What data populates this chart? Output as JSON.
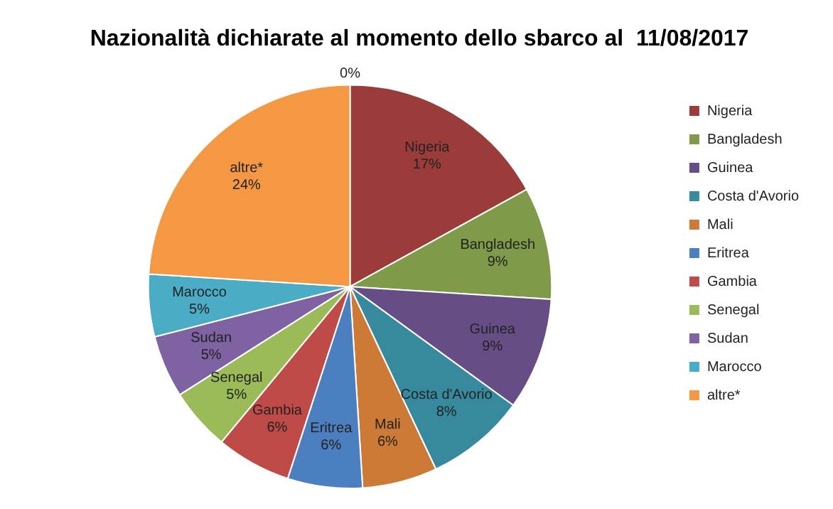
{
  "chart_data": {
    "type": "pie",
    "title": "Nazionalità dichiarate al momento dello sbarco al  11/08/2017",
    "categories": [
      "Nigeria",
      "Bangladesh",
      "Guinea",
      "Costa d'Avorio",
      "Mali",
      "Eritrea",
      "Gambia",
      "Senegal",
      "Sudan",
      "Marocco",
      "altre*"
    ],
    "values": [
      17,
      9,
      9,
      8,
      6,
      6,
      6,
      5,
      5,
      5,
      24
    ],
    "colors": [
      "#9b3c3b",
      "#7f9a48",
      "#674d86",
      "#378a9d",
      "#cc7a36",
      "#4b7fbf",
      "#be4b48",
      "#9bbb59",
      "#7f62a1",
      "#4aacc5",
      "#f59844"
    ],
    "value_labels": [
      "17%",
      "9%",
      "9%",
      "8%",
      "6%",
      "6%",
      "6%",
      "5%",
      "5%",
      "5%",
      "24%"
    ],
    "annotations": [
      "0%"
    ],
    "legend": "right"
  }
}
